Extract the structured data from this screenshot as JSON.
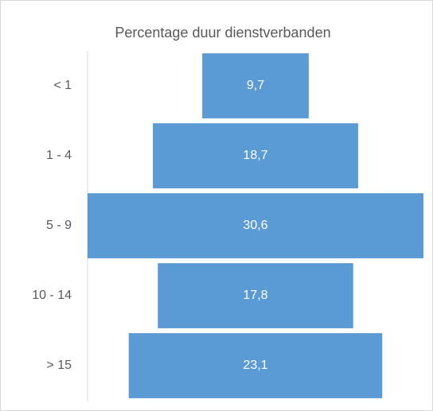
{
  "chart_data": {
    "type": "funnel",
    "title": "Percentage duur dienstverbanden",
    "categories": [
      "< 1",
      "1 - 4",
      "5 - 9",
      "10 - 14",
      "> 15"
    ],
    "values": [
      9.7,
      18.7,
      30.6,
      17.8,
      23.1
    ],
    "value_labels": [
      "9,7",
      "18,7",
      "30,6",
      "17,8",
      "23,1"
    ],
    "color": "#5b9bd5"
  }
}
